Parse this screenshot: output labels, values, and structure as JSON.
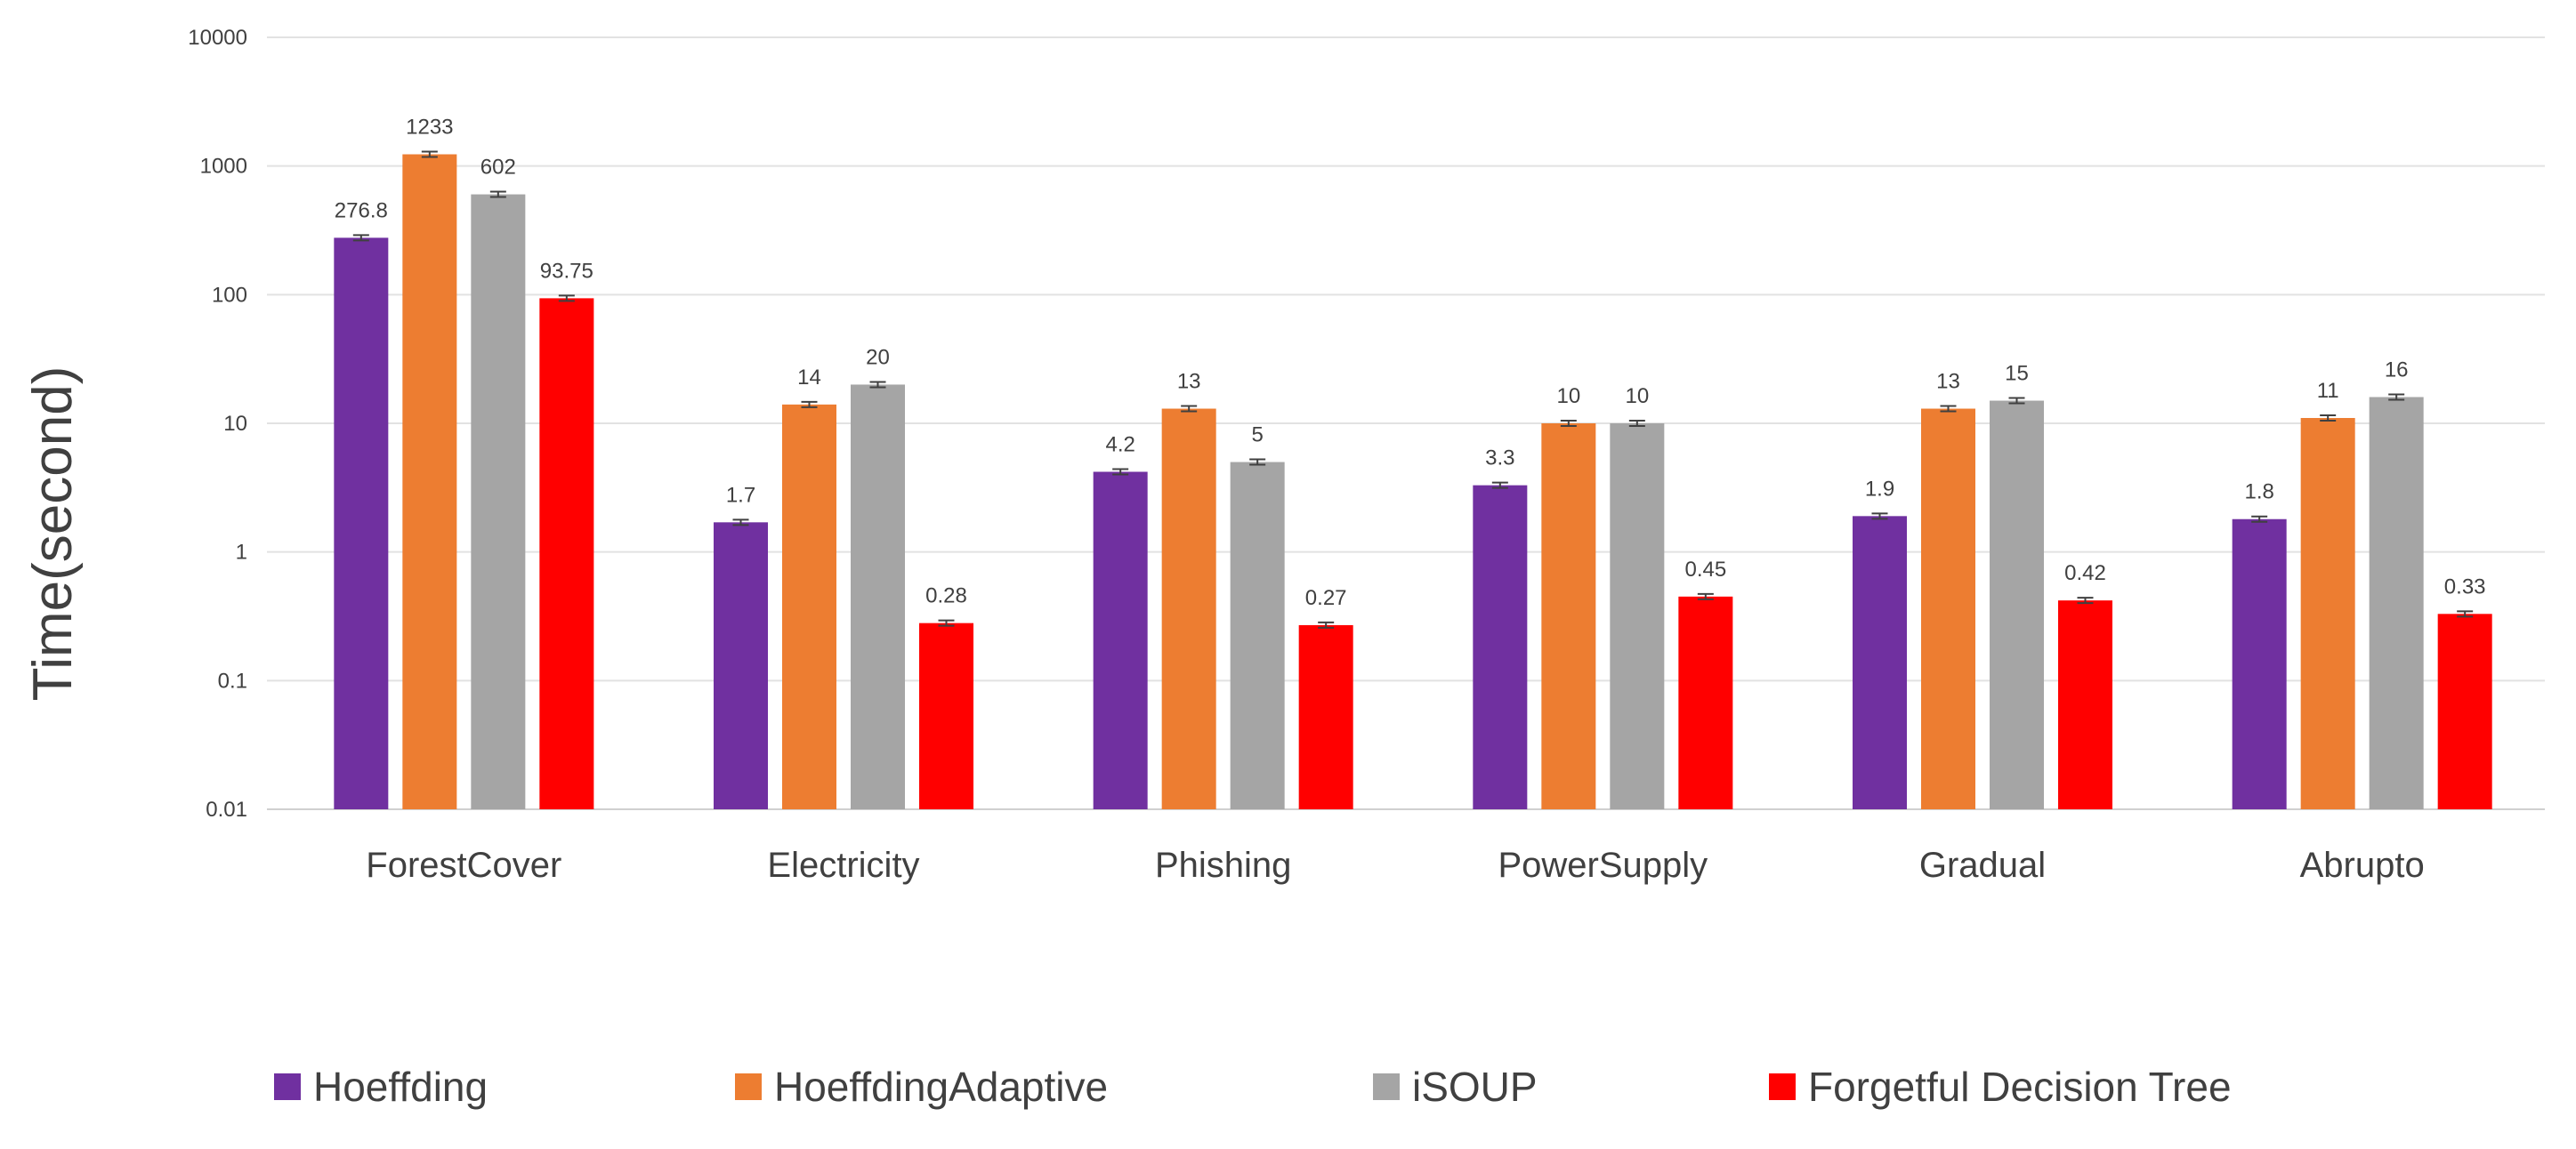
{
  "chart_data": {
    "type": "bar",
    "title": "",
    "xlabel": "",
    "ylabel": "Time(second)",
    "yscale": "log",
    "ylim": [
      0.01,
      10000
    ],
    "yticks": [
      "0.01",
      "0.1",
      "1",
      "10",
      "100",
      "1000",
      "10000"
    ],
    "grid": true,
    "legend_position": "bottom",
    "error_bars": true,
    "categories": [
      "ForestCover",
      "Electricity",
      "Phishing",
      "PowerSupply",
      "Gradual",
      "Abrupto"
    ],
    "series": [
      {
        "name": "Hoeffding",
        "color": "#7030A0",
        "values": [
          276.8,
          1.7,
          4.2,
          3.3,
          1.9,
          1.8
        ],
        "labels": [
          "276.8",
          "1.7",
          "4.2",
          "3.3",
          "1.9",
          "1.8"
        ]
      },
      {
        "name": "HoeffdingAdaptive",
        "color": "#ED7D31",
        "values": [
          1233,
          14,
          13,
          10,
          13,
          11
        ],
        "labels": [
          "1233",
          "14",
          "13",
          "10",
          "13",
          "11"
        ]
      },
      {
        "name": "iSOUP",
        "color": "#A5A5A5",
        "values": [
          602,
          20,
          5,
          10,
          15,
          16
        ],
        "labels": [
          "602",
          "20",
          "5",
          "10",
          "15",
          "16"
        ]
      },
      {
        "name": "Forgetful Decision Tree",
        "color": "#FF0000",
        "values": [
          93.75,
          0.28,
          0.27,
          0.45,
          0.42,
          0.33
        ],
        "labels": [
          "93.75",
          "0.28",
          "0.27",
          "0.45",
          "0.42",
          "0.33"
        ]
      }
    ]
  }
}
